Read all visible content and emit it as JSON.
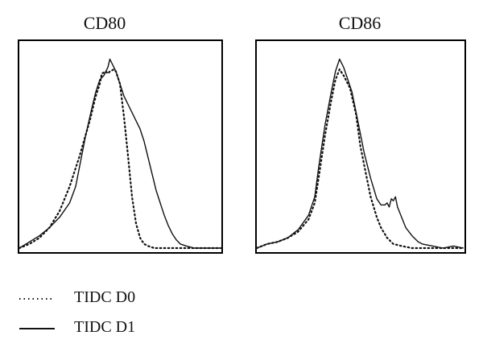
{
  "chart_data": [
    {
      "type": "line",
      "title": "CD80",
      "xlim": [
        0,
        100
      ],
      "ylim": [
        0,
        100
      ],
      "series": [
        {
          "name": "TIDC D0",
          "style": "dotted",
          "x": [
            0,
            5,
            10,
            15,
            20,
            25,
            30,
            35,
            38,
            40,
            41,
            43,
            44,
            45,
            47,
            48,
            50,
            52,
            54,
            56,
            58,
            60,
            62,
            64,
            67,
            70,
            75,
            80,
            100
          ],
          "y": [
            0,
            2,
            5,
            10,
            18,
            30,
            45,
            62,
            74,
            80,
            85,
            86,
            85,
            86,
            87,
            86,
            80,
            64,
            45,
            25,
            12,
            5,
            2,
            1,
            0,
            0,
            0,
            0,
            0
          ]
        },
        {
          "name": "TIDC D1",
          "style": "solid",
          "x": [
            0,
            5,
            10,
            15,
            20,
            25,
            28,
            30,
            33,
            36,
            38,
            40,
            42,
            44,
            45,
            46,
            48,
            50,
            52,
            54,
            56,
            58,
            60,
            62,
            64,
            66,
            68,
            70,
            72,
            74,
            76,
            78,
            80,
            83,
            87,
            92,
            100
          ],
          "y": [
            0,
            3,
            6,
            10,
            15,
            22,
            30,
            40,
            55,
            68,
            76,
            82,
            84,
            88,
            92,
            90,
            86,
            80,
            74,
            70,
            66,
            62,
            58,
            52,
            44,
            36,
            28,
            22,
            16,
            11,
            7,
            4,
            2,
            1,
            0,
            0,
            0
          ]
        }
      ]
    },
    {
      "type": "line",
      "title": "CD86",
      "xlim": [
        0,
        100
      ],
      "ylim": [
        0,
        100
      ],
      "series": [
        {
          "name": "TIDC D0",
          "style": "dotted",
          "x": [
            0,
            5,
            10,
            15,
            20,
            25,
            28,
            30,
            33,
            36,
            38,
            40,
            42,
            45,
            48,
            50,
            52,
            55,
            58,
            60,
            63,
            66,
            70,
            75,
            80,
            100
          ],
          "y": [
            0,
            2,
            3,
            5,
            8,
            14,
            22,
            35,
            55,
            72,
            82,
            87,
            84,
            78,
            65,
            50,
            40,
            25,
            15,
            10,
            5,
            2,
            1,
            0,
            0,
            0
          ],
          "name_hidden": false
        },
        {
          "name": "TIDC D1",
          "style": "solid",
          "x": [
            0,
            5,
            10,
            15,
            20,
            25,
            28,
            30,
            33,
            36,
            38,
            40,
            42,
            44,
            46,
            48,
            50,
            52,
            55,
            58,
            60,
            62,
            63,
            64,
            65,
            66,
            67,
            68,
            70,
            72,
            75,
            78,
            80,
            85,
            90,
            95,
            100
          ],
          "y": [
            0,
            2,
            3,
            5,
            9,
            16,
            25,
            40,
            60,
            76,
            86,
            92,
            88,
            82,
            76,
            66,
            56,
            46,
            34,
            24,
            21,
            21,
            22,
            20,
            24,
            23,
            25,
            20,
            15,
            10,
            6,
            3,
            2,
            1,
            0,
            1,
            0
          ]
        }
      ]
    }
  ],
  "legend": [
    {
      "label": "TIDC D0",
      "style": "dotted"
    },
    {
      "label": "TIDC D1",
      "style": "solid"
    }
  ],
  "colors": {
    "line": "#111111",
    "frame": "#000000"
  }
}
